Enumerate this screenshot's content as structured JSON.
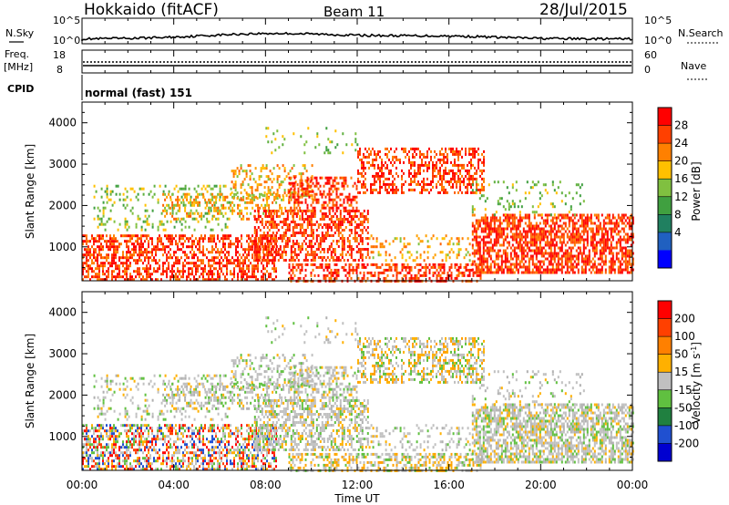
{
  "header": {
    "station": "Hokkaido (fitACF)",
    "beam": "Beam 11",
    "date": "28/Jul/2015"
  },
  "noise_panel": {
    "left_label": "N.Sky",
    "right_label": "N.Search",
    "ticks": [
      "10^5",
      "10^0"
    ]
  },
  "freq_panel": {
    "left_label_1": "Freq.",
    "left_label_2": "[MHz]",
    "left_ticks": [
      "18",
      "8"
    ],
    "right_label": "Nave",
    "right_ticks": [
      "60",
      "0"
    ]
  },
  "cpid": {
    "label": "CPID",
    "mode": "normal (fast) 151"
  },
  "chart_data": [
    {
      "type": "heatmap",
      "parameter": "power",
      "ylabel": "Slant Range [km]",
      "ylim": [
        180,
        4500
      ],
      "yticks": [
        1000,
        2000,
        3000,
        4000
      ],
      "xlim": [
        0,
        24
      ],
      "colorbar": {
        "label": "Power [dB]",
        "ticks": [
          "28",
          "24",
          "20",
          "16",
          "12",
          "8",
          "4"
        ],
        "colors": [
          "#0000ff",
          "#2060c0",
          "#208060",
          "#40a040",
          "#80c040",
          "#ffc000",
          "#ff8000",
          "#ff4000",
          "#ff0000"
        ]
      }
    },
    {
      "type": "heatmap",
      "parameter": "velocity",
      "ylabel": "Slant Range [km]",
      "ylim": [
        180,
        4500
      ],
      "yticks": [
        1000,
        2000,
        3000,
        4000
      ],
      "xlim": [
        0,
        24
      ],
      "colorbar": {
        "label": "Velocity [m s^-1]",
        "ticks": [
          "200",
          "100",
          "50",
          "15",
          "-15",
          "-50",
          "-100",
          "-200"
        ],
        "colors": [
          "#0000d0",
          "#2050d0",
          "#208040",
          "#60c040",
          "#c0c0c0",
          "#ffb000",
          "#ff8000",
          "#ff4000",
          "#ff0000"
        ]
      }
    }
  ],
  "time_axis": {
    "label": "Time UT",
    "ticks": [
      "00:00",
      "04:00",
      "08:00",
      "12:00",
      "16:00",
      "20:00",
      "00:00"
    ]
  }
}
